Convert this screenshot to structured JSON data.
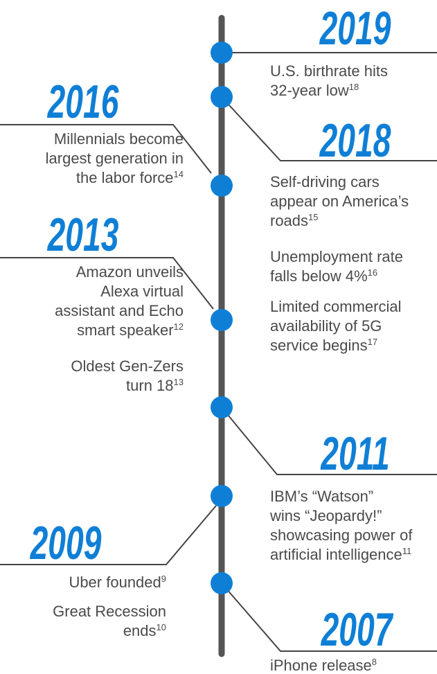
{
  "events": [
    {
      "year": "2019",
      "items": [
        {
          "lines": [
            "U.S. birthrate hits",
            "32-year low"
          ],
          "note": "18"
        }
      ]
    },
    {
      "year": "2018",
      "items": [
        {
          "lines": [
            "Self-driving cars",
            "appear on America’s",
            "roads"
          ],
          "note": "15"
        },
        {
          "lines": [
            "Unemployment rate",
            "falls below 4%"
          ],
          "note": "16"
        },
        {
          "lines": [
            "Limited commercial",
            "availability of 5G",
            "service begins"
          ],
          "note": "17"
        }
      ]
    },
    {
      "year": "2016",
      "items": [
        {
          "lines": [
            "Millennials become",
            "largest generation in",
            "the labor force"
          ],
          "note": "14"
        }
      ]
    },
    {
      "year": "2013",
      "items": [
        {
          "lines": [
            "Amazon unveils",
            "Alexa virtual",
            "assistant and Echo",
            "smart speaker"
          ],
          "note": "12"
        },
        {
          "lines": [
            "Oldest Gen-Zers",
            "turn 18"
          ],
          "note": "13"
        }
      ]
    },
    {
      "year": "2011",
      "items": [
        {
          "lines": [
            "IBM’s “Watson”",
            "wins “Jeopardy!”",
            "showcasing power of",
            "artificial intelligence"
          ],
          "note": "11"
        }
      ]
    },
    {
      "year": "2009",
      "items": [
        {
          "lines": [
            "Uber founded"
          ],
          "note": "9"
        },
        {
          "lines": [
            "Great Recession",
            "ends"
          ],
          "note": "10"
        }
      ]
    },
    {
      "year": "2007",
      "items": [
        {
          "lines": [
            "iPhone release"
          ],
          "note": "8"
        }
      ]
    }
  ]
}
